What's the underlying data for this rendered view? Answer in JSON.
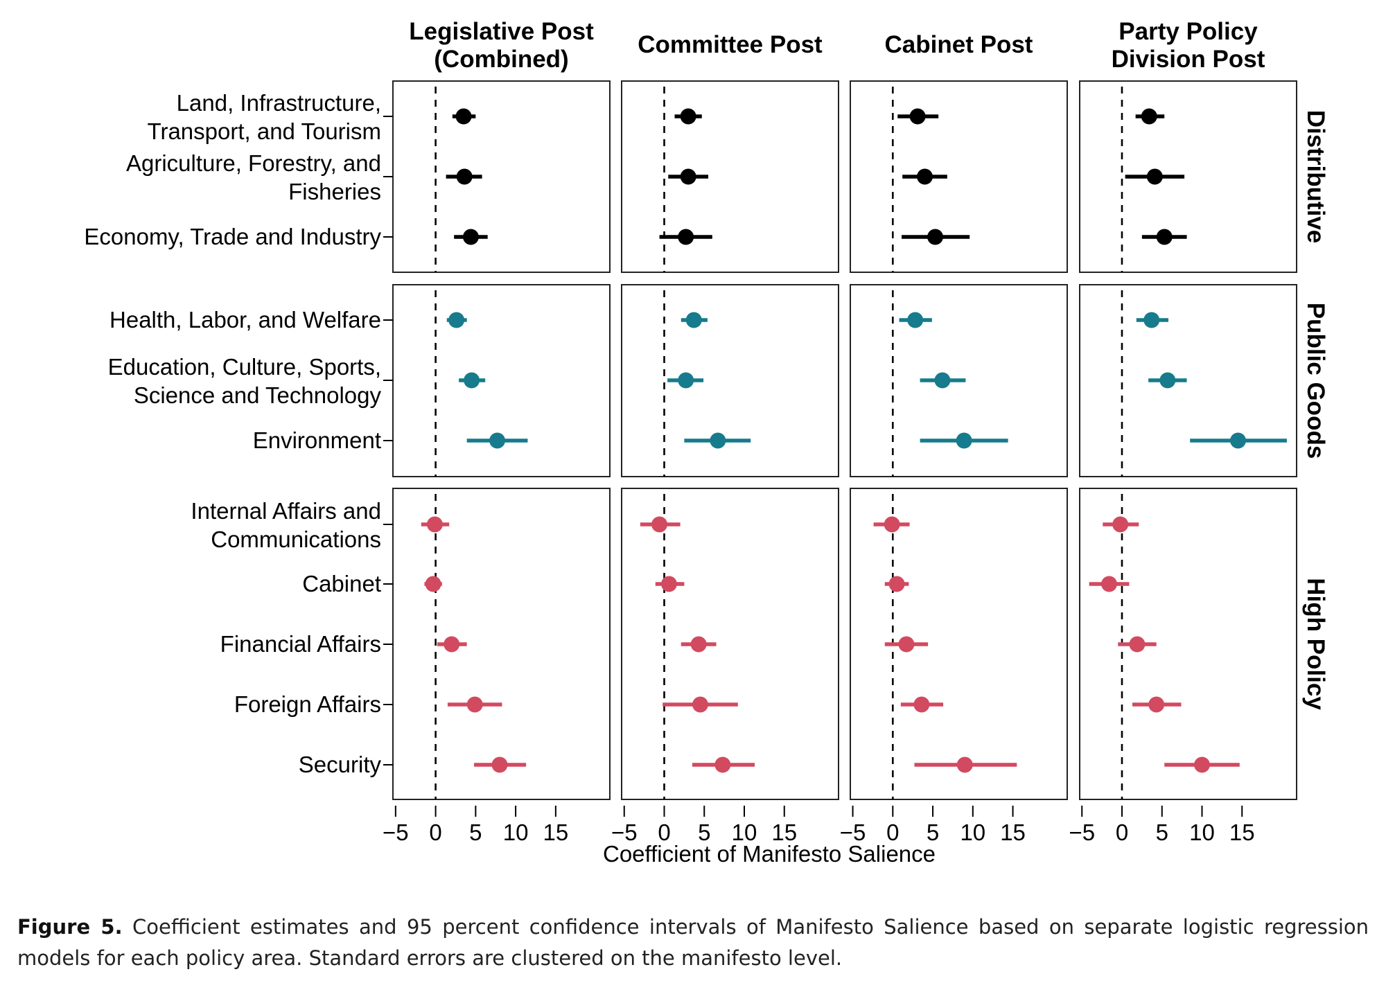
{
  "chart_data": {
    "type": "coefficient-plot",
    "title": "",
    "xlabel": "Coefficient of Manifesto Salience",
    "xlim": [
      -5,
      22
    ],
    "x_ticks": [
      -5,
      0,
      5,
      10,
      15
    ],
    "x_tick_labels": [
      "−5",
      "0",
      "5",
      "10",
      "15"
    ],
    "reference_line": 0,
    "grid": false,
    "columns": [
      {
        "title_lines": [
          "Legislative Post",
          "(Combined)"
        ]
      },
      {
        "title_lines": [
          "Committee Post"
        ]
      },
      {
        "title_lines": [
          "Cabinet Post"
        ]
      },
      {
        "title_lines": [
          "Party Policy",
          "Division Post"
        ]
      }
    ],
    "groups": [
      {
        "name": "Distributive",
        "color": "#000000",
        "rows": [
          {
            "label_lines": [
              "Land, Infrastructure,",
              "Transport, and Tourism"
            ],
            "estimates": [
              3.5,
              3.0,
              3.1,
              3.4
            ],
            "ci_low": [
              2.1,
              1.3,
              0.6,
              1.7
            ],
            "ci_high": [
              5.0,
              4.7,
              5.7,
              5.3
            ]
          },
          {
            "label_lines": [
              "Agriculture, Forestry, and",
              "Fisheries"
            ],
            "estimates": [
              3.6,
              3.0,
              4.0,
              4.1
            ],
            "ci_low": [
              1.3,
              0.5,
              1.2,
              0.4
            ],
            "ci_high": [
              5.8,
              5.5,
              6.8,
              7.8
            ]
          },
          {
            "label_lines": [
              "Economy, Trade and Industry"
            ],
            "estimates": [
              4.4,
              2.7,
              5.3,
              5.3
            ],
            "ci_low": [
              2.3,
              -0.6,
              1.1,
              2.5
            ],
            "ci_high": [
              6.5,
              6.0,
              9.6,
              8.1
            ]
          }
        ]
      },
      {
        "name": "Public Goods",
        "color": "#167B8C",
        "rows": [
          {
            "label_lines": [
              "Health, Labor, and Welfare"
            ],
            "estimates": [
              2.6,
              3.7,
              2.8,
              3.7
            ],
            "ci_low": [
              1.4,
              2.1,
              0.8,
              1.8
            ],
            "ci_high": [
              3.9,
              5.4,
              4.9,
              5.8
            ]
          },
          {
            "label_lines": [
              "Education, Culture, Sports,",
              "Science and Technology"
            ],
            "estimates": [
              4.5,
              2.7,
              6.2,
              5.7
            ],
            "ci_low": [
              2.9,
              0.4,
              3.4,
              3.3
            ],
            "ci_high": [
              6.2,
              4.9,
              9.1,
              8.1
            ]
          },
          {
            "label_lines": [
              "Environment"
            ],
            "estimates": [
              7.7,
              6.7,
              8.9,
              14.5
            ],
            "ci_low": [
              3.9,
              2.5,
              3.4,
              8.5
            ],
            "ci_high": [
              11.5,
              10.8,
              14.4,
              20.6
            ]
          }
        ]
      },
      {
        "name": "High Policy",
        "color": "#D24A60",
        "rows": [
          {
            "label_lines": [
              "Internal Affairs and",
              "Communications"
            ],
            "estimates": [
              -0.1,
              -0.6,
              -0.1,
              -0.2
            ],
            "ci_low": [
              -1.8,
              -3.0,
              -2.4,
              -2.4
            ],
            "ci_high": [
              1.7,
              2.0,
              2.1,
              2.1
            ]
          },
          {
            "label_lines": [
              "Cabinet"
            ],
            "estimates": [
              -0.3,
              0.6,
              0.5,
              -1.6
            ],
            "ci_low": [
              -1.4,
              -1.1,
              -1.0,
              -4.1
            ],
            "ci_high": [
              0.8,
              2.5,
              2.0,
              0.9
            ]
          },
          {
            "label_lines": [
              "Financial Affairs"
            ],
            "estimates": [
              2.0,
              4.3,
              1.7,
              1.9
            ],
            "ci_low": [
              0.2,
              2.1,
              -1.0,
              -0.5
            ],
            "ci_high": [
              3.9,
              6.5,
              4.4,
              4.3
            ]
          },
          {
            "label_lines": [
              "Foreign Affairs"
            ],
            "estimates": [
              4.9,
              4.5,
              3.6,
              4.3
            ],
            "ci_low": [
              1.5,
              -0.2,
              1.0,
              1.3
            ],
            "ci_high": [
              8.3,
              9.2,
              6.3,
              7.4
            ]
          },
          {
            "label_lines": [
              "Security"
            ],
            "estimates": [
              8.0,
              7.3,
              9.0,
              10.0
            ],
            "ci_low": [
              4.8,
              3.5,
              2.7,
              5.3
            ],
            "ci_high": [
              11.3,
              11.3,
              15.5,
              14.7
            ]
          }
        ]
      }
    ]
  },
  "caption": {
    "label": "Figure 5.",
    "text": "Coefficient estimates and 95 percent confidence intervals of Manifesto Salience based on separate logistic regression models for each policy area. Standard errors are clustered on the manifesto level."
  }
}
